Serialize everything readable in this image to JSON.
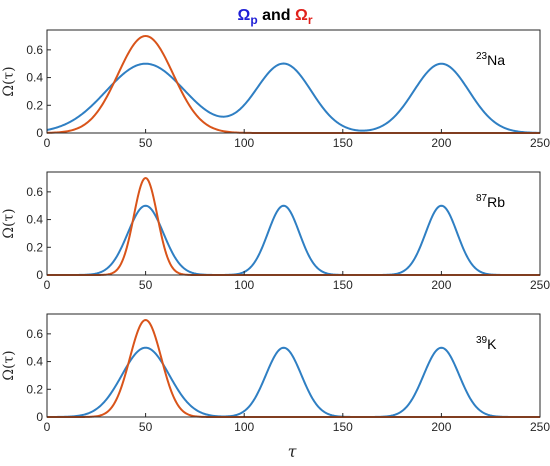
{
  "title": {
    "omega": "Ω",
    "p_sub": "p",
    "and": " and ",
    "r_sub": "r",
    "p_color": "#1f1fd6",
    "and_color": "#000000",
    "r_color": "#e0201b"
  },
  "xlabel": "τ",
  "ylabel": "Ω(τ)",
  "colors": {
    "pump": "#2f7fc3",
    "stokes": "#d9541a"
  },
  "chart_data": [
    {
      "type": "line",
      "annotation": {
        "mass": "23",
        "element": "Na"
      },
      "xlim": [
        0,
        250
      ],
      "ylim": [
        0,
        0.7
      ],
      "xticks": [
        0,
        50,
        100,
        150,
        200,
        250
      ],
      "yticks": [
        0,
        0.2,
        0.4,
        0.6
      ],
      "xticklabels": [
        "0",
        "50",
        "100",
        "150",
        "200",
        "250"
      ],
      "yticklabels": [
        "0",
        "0.2",
        "0.4",
        "0.6"
      ],
      "series": [
        {
          "key": "pump",
          "shape": "gaussian_sum",
          "components": [
            {
              "center": 50,
              "amplitude": 0.5,
              "sigma": 20
            },
            {
              "center": 120,
              "amplitude": 0.5,
              "sigma": 14
            },
            {
              "center": 200,
              "amplitude": 0.5,
              "sigma": 14
            }
          ]
        },
        {
          "key": "stokes",
          "shape": "gaussian_sum",
          "components": [
            {
              "center": 50,
              "amplitude": 0.7,
              "sigma": 14
            }
          ]
        }
      ]
    },
    {
      "type": "line",
      "annotation": {
        "mass": "87",
        "element": "Rb"
      },
      "xlim": [
        0,
        250
      ],
      "ylim": [
        0,
        0.7
      ],
      "xticks": [
        0,
        50,
        100,
        150,
        200,
        250
      ],
      "yticks": [
        0,
        0.2,
        0.4,
        0.6
      ],
      "xticklabels": [
        "0",
        "50",
        "100",
        "150",
        "200",
        "250"
      ],
      "yticklabels": [
        "0",
        "0.2",
        "0.4",
        "0.6"
      ],
      "series": [
        {
          "key": "pump",
          "shape": "gaussian_sum",
          "components": [
            {
              "center": 50,
              "amplitude": 0.5,
              "sigma": 9
            },
            {
              "center": 120,
              "amplitude": 0.5,
              "sigma": 8
            },
            {
              "center": 200,
              "amplitude": 0.5,
              "sigma": 8
            }
          ]
        },
        {
          "key": "stokes",
          "shape": "gaussian_sum",
          "components": [
            {
              "center": 50,
              "amplitude": 0.7,
              "sigma": 6
            }
          ]
        }
      ]
    },
    {
      "type": "line",
      "annotation": {
        "mass": "39",
        "element": "K"
      },
      "xlim": [
        0,
        250
      ],
      "ylim": [
        0,
        0.7
      ],
      "xticks": [
        0,
        50,
        100,
        150,
        200,
        250
      ],
      "yticks": [
        0,
        0.2,
        0.4,
        0.6
      ],
      "xticklabels": [
        "0",
        "50",
        "100",
        "150",
        "200",
        "250"
      ],
      "yticklabels": [
        "0",
        "0.2",
        "0.4",
        "0.6"
      ],
      "series": [
        {
          "key": "pump",
          "shape": "gaussian_sum",
          "components": [
            {
              "center": 50,
              "amplitude": 0.5,
              "sigma": 12
            },
            {
              "center": 120,
              "amplitude": 0.5,
              "sigma": 9
            },
            {
              "center": 200,
              "amplitude": 0.5,
              "sigma": 9
            }
          ]
        },
        {
          "key": "stokes",
          "shape": "gaussian_sum",
          "components": [
            {
              "center": 50,
              "amplitude": 0.7,
              "sigma": 8
            }
          ]
        }
      ]
    }
  ]
}
